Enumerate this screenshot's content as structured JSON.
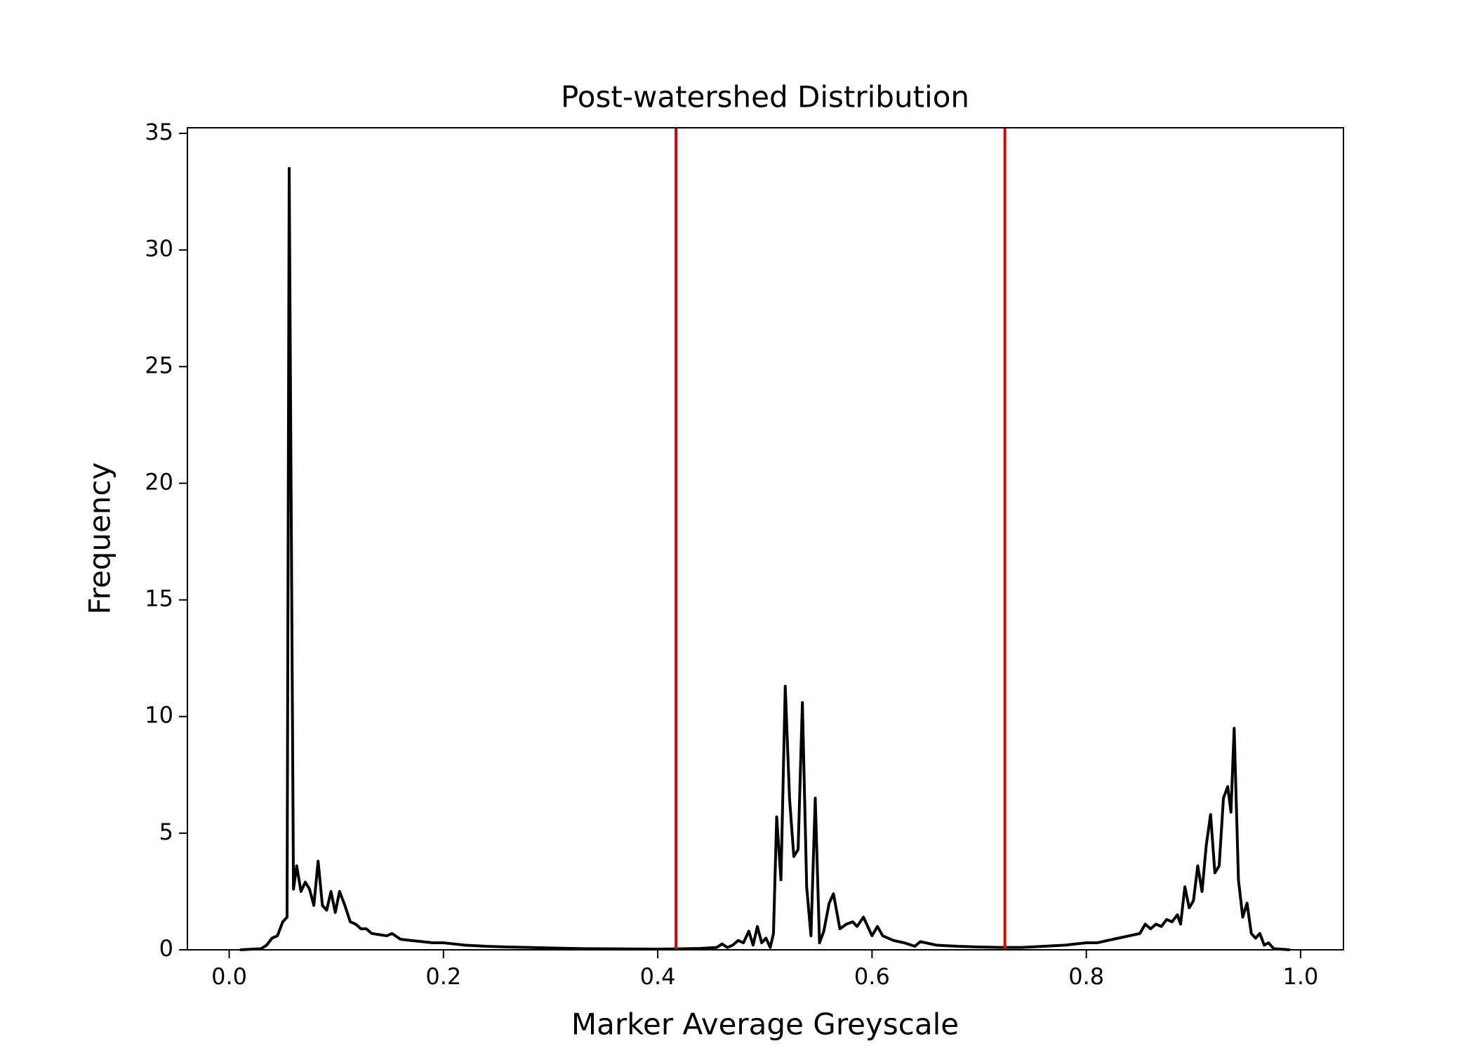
{
  "chart_data": {
    "type": "line",
    "title": "Post-watershed Distribution",
    "xlabel": "Marker Average Greyscale",
    "ylabel": "Frequency",
    "x": [
      0.01,
      0.03,
      0.035,
      0.04,
      0.045,
      0.05,
      0.054,
      0.056,
      0.06,
      0.063,
      0.067,
      0.071,
      0.075,
      0.079,
      0.083,
      0.087,
      0.091,
      0.095,
      0.099,
      0.103,
      0.108,
      0.113,
      0.118,
      0.123,
      0.128,
      0.133,
      0.14,
      0.147,
      0.152,
      0.16,
      0.17,
      0.18,
      0.19,
      0.2,
      0.21,
      0.22,
      0.24,
      0.26,
      0.28,
      0.3,
      0.33,
      0.36,
      0.4,
      0.42,
      0.44,
      0.455,
      0.46,
      0.465,
      0.47,
      0.475,
      0.48,
      0.485,
      0.489,
      0.493,
      0.497,
      0.501,
      0.505,
      0.508,
      0.511,
      0.515,
      0.519,
      0.523,
      0.527,
      0.531,
      0.535,
      0.539,
      0.543,
      0.547,
      0.551,
      0.555,
      0.56,
      0.564,
      0.57,
      0.576,
      0.582,
      0.586,
      0.592,
      0.597,
      0.6,
      0.605,
      0.61,
      0.62,
      0.63,
      0.64,
      0.645,
      0.66,
      0.68,
      0.7,
      0.72,
      0.74,
      0.76,
      0.78,
      0.8,
      0.81,
      0.82,
      0.83,
      0.84,
      0.85,
      0.855,
      0.86,
      0.865,
      0.87,
      0.875,
      0.88,
      0.885,
      0.888,
      0.892,
      0.896,
      0.9,
      0.904,
      0.908,
      0.912,
      0.916,
      0.92,
      0.924,
      0.928,
      0.932,
      0.935,
      0.938,
      0.942,
      0.946,
      0.95,
      0.954,
      0.958,
      0.962,
      0.966,
      0.97,
      0.975,
      0.99
    ],
    "series": [
      {
        "color": "#000000",
        "values": [
          0,
          0.05,
          0.2,
          0.5,
          0.6,
          1.2,
          1.4,
          33.5,
          2.6,
          3.6,
          2.5,
          2.9,
          2.6,
          1.9,
          3.8,
          1.9,
          1.7,
          2.5,
          1.6,
          2.5,
          1.9,
          1.2,
          1.1,
          0.9,
          0.9,
          0.7,
          0.65,
          0.6,
          0.7,
          0.45,
          0.4,
          0.35,
          0.3,
          0.3,
          0.25,
          0.2,
          0.15,
          0.12,
          0.1,
          0.08,
          0.05,
          0.04,
          0.03,
          0.04,
          0.06,
          0.1,
          0.25,
          0.1,
          0.2,
          0.4,
          0.3,
          0.8,
          0.2,
          1.0,
          0.3,
          0.5,
          0.1,
          0.7,
          5.7,
          3.0,
          11.3,
          6.5,
          4.0,
          4.3,
          10.6,
          2.7,
          0.6,
          6.5,
          0.3,
          0.8,
          2.0,
          2.4,
          0.9,
          1.1,
          1.2,
          1.0,
          1.4,
          0.9,
          0.6,
          1.0,
          0.6,
          0.4,
          0.3,
          0.15,
          0.35,
          0.2,
          0.15,
          0.12,
          0.1,
          0.1,
          0.15,
          0.2,
          0.3,
          0.3,
          0.4,
          0.5,
          0.6,
          0.7,
          1.1,
          0.9,
          1.1,
          1.0,
          1.3,
          1.2,
          1.5,
          1.1,
          2.7,
          1.8,
          2.1,
          3.6,
          2.5,
          4.5,
          5.8,
          3.3,
          3.6,
          6.5,
          7.0,
          5.9,
          9.5,
          3.0,
          1.4,
          2.0,
          0.7,
          0.5,
          0.7,
          0.2,
          0.3,
          0.05,
          0
        ]
      }
    ],
    "vlines": [
      0.417,
      0.724
    ],
    "vline_color": "#e00000",
    "xlim": [
      -0.039,
      1.04
    ],
    "ylim": [
      0,
      35.24
    ],
    "xticks": [
      {
        "value": 0,
        "label": "0.0"
      },
      0.2,
      0.4,
      0.6,
      0.8,
      {
        "value": 1,
        "label": "1.0"
      }
    ],
    "yticks": [
      0,
      5,
      10,
      15,
      20,
      25,
      30,
      35
    ]
  }
}
